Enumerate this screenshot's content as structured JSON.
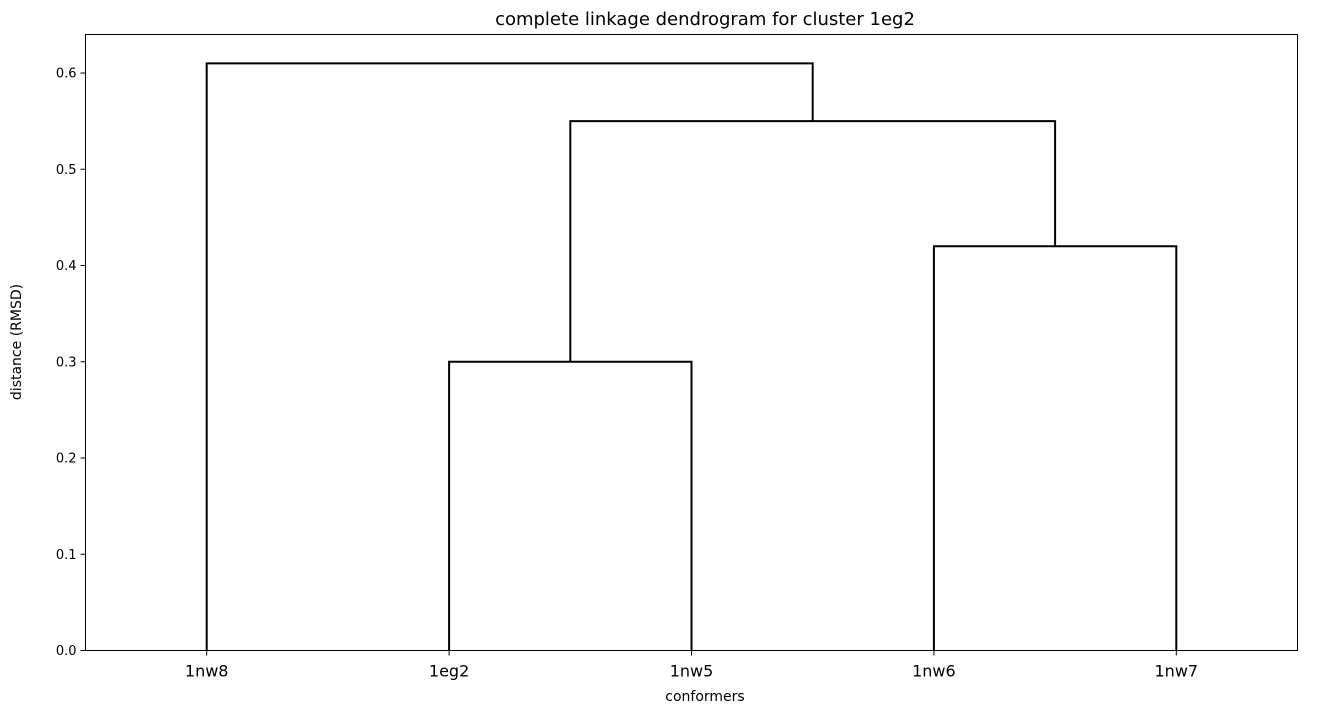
{
  "chart_data": {
    "type": "dendrogram",
    "title": "complete linkage dendrogram for cluster 1eg2",
    "xlabel": "conformers",
    "ylabel": "distance (RMSD)",
    "ylim": [
      0,
      0.64
    ],
    "yticks": [
      0.0,
      0.1,
      0.2,
      0.3,
      0.4,
      0.5,
      0.6
    ],
    "ytick_labels": [
      "0.0",
      "0.1",
      "0.2",
      "0.3",
      "0.4",
      "0.5",
      "0.6"
    ],
    "leaves": [
      "1nw8",
      "1eg2",
      "1nw5",
      "1nw6",
      "1nw7"
    ],
    "merges": [
      {
        "left": "1eg2",
        "right": "1nw5",
        "height": 0.3
      },
      {
        "left": "1nw6",
        "right": "1nw7",
        "height": 0.42
      },
      {
        "left": "1eg2+1nw5",
        "right": "1nw6+1nw7",
        "height": 0.55
      },
      {
        "left": "1nw8",
        "right": "1eg2+1nw5+1nw6+1nw7",
        "height": 0.61
      }
    ],
    "grid": false,
    "line_color": "#000000"
  }
}
